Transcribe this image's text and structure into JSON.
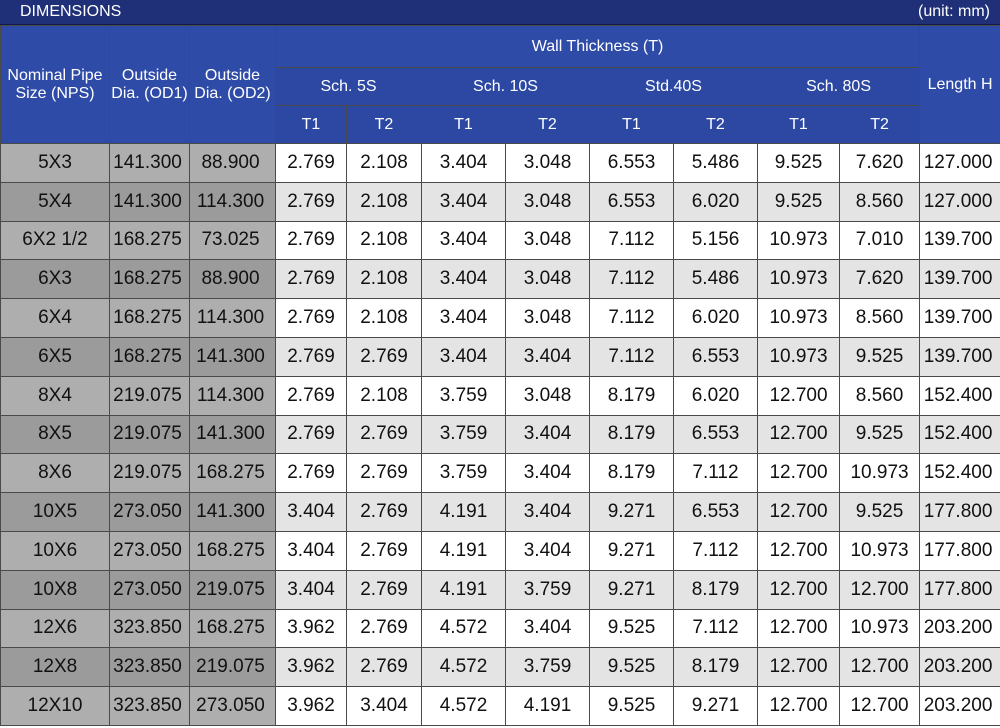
{
  "header": {
    "title": "DIMENSIONS",
    "unit": "(unit: mm)"
  },
  "columns": {
    "nps": "Nominal Pipe Size (NPS)",
    "od1": "Outside Dia. (OD1)",
    "od2": "Outside Dia. (OD2)",
    "wall": "Wall Thickness (T)",
    "length": "Length H",
    "schedules": [
      "Sch. 5S",
      "Sch. 10S",
      "Std.40S",
      "Sch. 80S"
    ],
    "t1": "T1",
    "t2": "T2"
  },
  "rows": [
    [
      "5X3",
      "141.300",
      "88.900",
      "2.769",
      "2.108",
      "3.404",
      "3.048",
      "6.553",
      "5.486",
      "9.525",
      "7.620",
      "127.000"
    ],
    [
      "5X4",
      "141.300",
      "114.300",
      "2.769",
      "2.108",
      "3.404",
      "3.048",
      "6.553",
      "6.020",
      "9.525",
      "8.560",
      "127.000"
    ],
    [
      "6X2 1/2",
      "168.275",
      "73.025",
      "2.769",
      "2.108",
      "3.404",
      "3.048",
      "7.112",
      "5.156",
      "10.973",
      "7.010",
      "139.700"
    ],
    [
      "6X3",
      "168.275",
      "88.900",
      "2.769",
      "2.108",
      "3.404",
      "3.048",
      "7.112",
      "5.486",
      "10.973",
      "7.620",
      "139.700"
    ],
    [
      "6X4",
      "168.275",
      "114.300",
      "2.769",
      "2.108",
      "3.404",
      "3.048",
      "7.112",
      "6.020",
      "10.973",
      "8.560",
      "139.700"
    ],
    [
      "6X5",
      "168.275",
      "141.300",
      "2.769",
      "2.769",
      "3.404",
      "3.404",
      "7.112",
      "6.553",
      "10.973",
      "9.525",
      "139.700"
    ],
    [
      "8X4",
      "219.075",
      "114.300",
      "2.769",
      "2.108",
      "3.759",
      "3.048",
      "8.179",
      "6.020",
      "12.700",
      "8.560",
      "152.400"
    ],
    [
      "8X5",
      "219.075",
      "141.300",
      "2.769",
      "2.769",
      "3.759",
      "3.404",
      "8.179",
      "6.553",
      "12.700",
      "9.525",
      "152.400"
    ],
    [
      "8X6",
      "219.075",
      "168.275",
      "2.769",
      "2.769",
      "3.759",
      "3.404",
      "8.179",
      "7.112",
      "12.700",
      "10.973",
      "152.400"
    ],
    [
      "10X5",
      "273.050",
      "141.300",
      "3.404",
      "2.769",
      "4.191",
      "3.404",
      "9.271",
      "6.553",
      "12.700",
      "9.525",
      "177.800"
    ],
    [
      "10X6",
      "273.050",
      "168.275",
      "3.404",
      "2.769",
      "4.191",
      "3.404",
      "9.271",
      "7.112",
      "12.700",
      "10.973",
      "177.800"
    ],
    [
      "10X8",
      "273.050",
      "219.075",
      "3.404",
      "2.769",
      "4.191",
      "3.759",
      "9.271",
      "8.179",
      "12.700",
      "12.700",
      "177.800"
    ],
    [
      "12X6",
      "323.850",
      "168.275",
      "3.962",
      "2.769",
      "4.572",
      "3.404",
      "9.525",
      "7.112",
      "12.700",
      "10.973",
      "203.200"
    ],
    [
      "12X8",
      "323.850",
      "219.075",
      "3.962",
      "2.769",
      "4.572",
      "3.759",
      "9.525",
      "8.179",
      "12.700",
      "12.700",
      "203.200"
    ],
    [
      "12X10",
      "323.850",
      "273.050",
      "3.962",
      "3.404",
      "4.572",
      "4.191",
      "9.525",
      "9.271",
      "12.700",
      "12.700",
      "203.200"
    ]
  ],
  "colors": {
    "title_bg": "#1f2f78",
    "header_bg": "#2f4ba8",
    "left_col_bg": "#aeaeae",
    "row_alt_bg": "#e4e4e4"
  }
}
